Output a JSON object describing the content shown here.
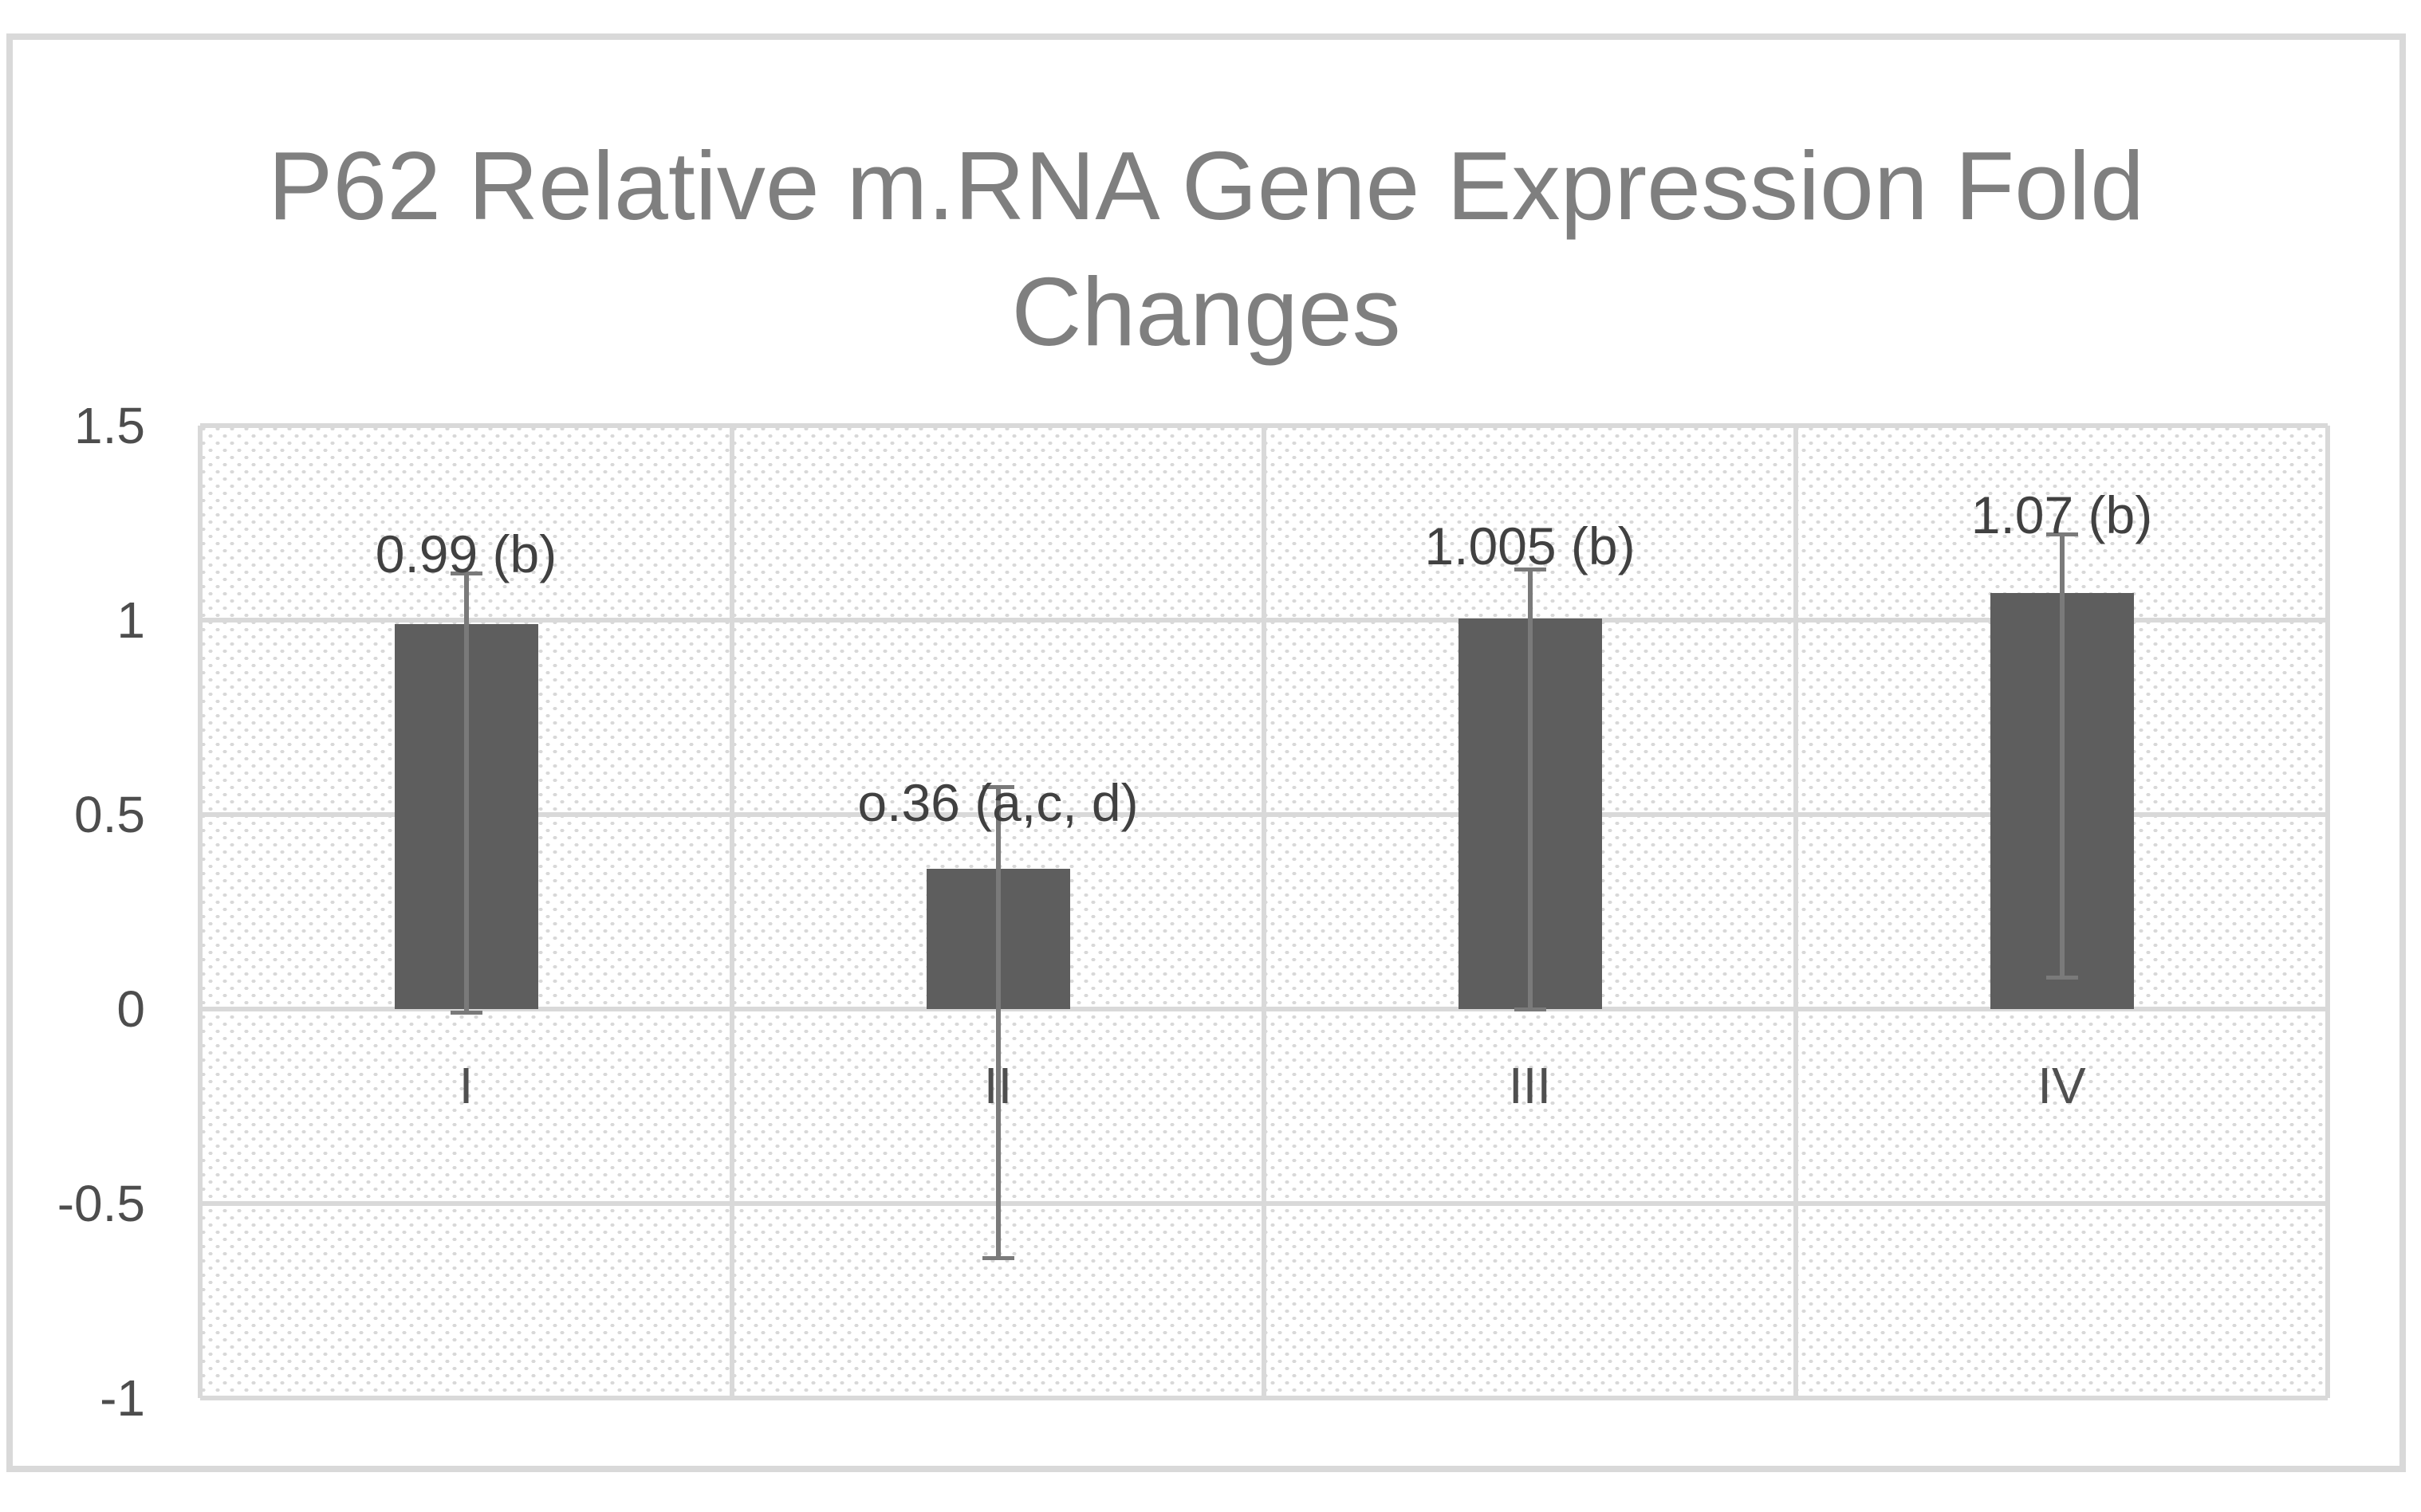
{
  "title_lines": [
    "P62 Relative m.RNA Gene Expression Fold",
    "Changes"
  ],
  "chart_data": {
    "type": "bar",
    "title": "P62 Relative m.RNA Gene Expression Fold Changes",
    "categories": [
      "I",
      "II",
      "III",
      "IV"
    ],
    "values": [
      0.99,
      0.36,
      1.005,
      1.07
    ],
    "data_labels": [
      "0.99 (b)",
      "o.36 (a,c, d)",
      "1.005 (b)",
      "1.07 (b)"
    ],
    "error_bars": [
      {
        "top": 1.12,
        "bottom": -0.01
      },
      {
        "top": 0.57,
        "bottom": -0.64
      },
      {
        "top": 1.13,
        "bottom": 0.0
      },
      {
        "top": 1.22,
        "bottom": 0.08
      }
    ],
    "label_positions_v": [
      1.17,
      0.53,
      1.19,
      1.27
    ],
    "y_ticks": [
      1.5,
      1,
      0.5,
      0,
      -0.5,
      -1
    ],
    "y_tick_labels": [
      "1.5",
      "1",
      "0.5",
      "0",
      "-0.5",
      "-1"
    ],
    "ylim": [
      -1,
      1.5
    ],
    "xlabel": "",
    "ylabel": "",
    "grid": true,
    "legend_position": "none",
    "colors": {
      "bar": "#5e5e5e",
      "error_bar": "#7a7a7a",
      "gridline": "#d9d9d9",
      "plot_pattern_dot": "#d8d8d8",
      "title_text": "#7f7f7f",
      "tick_text": "#4d4d4d",
      "data_label_text": "#414141",
      "frame_border": "#d9d9d9"
    }
  }
}
